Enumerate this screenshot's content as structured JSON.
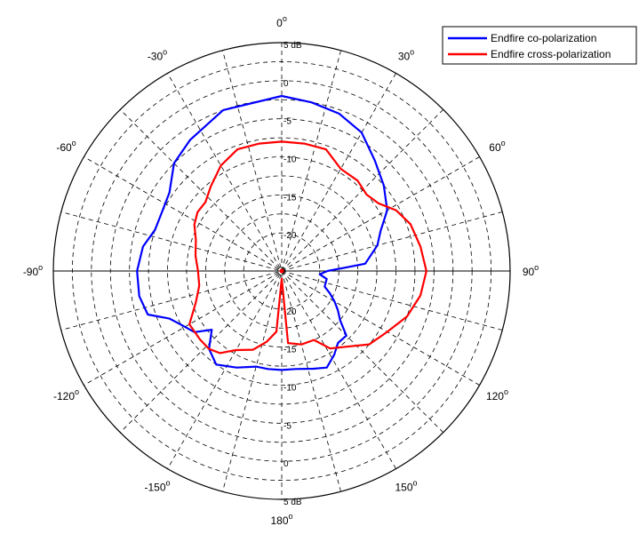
{
  "chart_data": {
    "type": "polar",
    "title": "",
    "angle_labels": [
      {
        "deg": 0,
        "text": "0"
      },
      {
        "deg": 30,
        "text": "30"
      },
      {
        "deg": 60,
        "text": "60"
      },
      {
        "deg": 90,
        "text": "90"
      },
      {
        "deg": 120,
        "text": "120"
      },
      {
        "deg": 150,
        "text": "150"
      },
      {
        "deg": 180,
        "text": "180"
      },
      {
        "deg": -150,
        "text": "-150"
      },
      {
        "deg": -120,
        "text": "-120"
      },
      {
        "deg": -90,
        "text": "-90"
      },
      {
        "deg": -60,
        "text": "-60"
      },
      {
        "deg": -30,
        "text": "-30"
      }
    ],
    "degree_symbol": "o",
    "ring_levels": [
      5,
      0,
      -5,
      -10,
      -15,
      -20
    ],
    "ring_labels": [
      "5 dB",
      "0",
      "-5",
      "-10",
      "-15",
      "-20"
    ],
    "r_range": [
      -25,
      5
    ],
    "legend": {
      "position": "top-right"
    },
    "series": [
      {
        "name": "Endfire co-polarization",
        "color": "#0000ff",
        "points": [
          [
            0,
            -2
          ],
          [
            -20,
            -2.5
          ],
          [
            -35,
            -4
          ],
          [
            -45,
            -5
          ],
          [
            -55,
            -7
          ],
          [
            -65,
            -7.5
          ],
          [
            -72,
            -7.5
          ],
          [
            -80,
            -6.5
          ],
          [
            -90,
            -6
          ],
          [
            -100,
            -6
          ],
          [
            -108,
            -6.5
          ],
          [
            -113,
            -9
          ],
          [
            -118,
            -10
          ],
          [
            -125,
            -11
          ],
          [
            -130,
            -13
          ],
          [
            -137,
            -11
          ],
          [
            -145,
            -10
          ],
          [
            -155,
            -11
          ],
          [
            -165,
            -12
          ],
          [
            -172,
            -12
          ],
          [
            180,
            -12
          ],
          [
            172,
            -12
          ],
          [
            162,
            -11.5
          ],
          [
            155,
            -11
          ],
          [
            148,
            -12
          ],
          [
            142,
            -13
          ],
          [
            135,
            -13
          ],
          [
            130,
            -15
          ],
          [
            125,
            -16
          ],
          [
            120,
            -17
          ],
          [
            115,
            -18
          ],
          [
            110,
            -19
          ],
          [
            100,
            -19
          ],
          [
            95,
            -20
          ],
          [
            90,
            -19
          ],
          [
            85,
            -14
          ],
          [
            75,
            -12
          ],
          [
            68,
            -11
          ],
          [
            60,
            -9
          ],
          [
            50,
            -7.5
          ],
          [
            40,
            -6
          ],
          [
            30,
            -4
          ],
          [
            20,
            -3
          ],
          [
            10,
            -2.5
          ],
          [
            0,
            -2
          ]
        ]
      },
      {
        "name": "Endfire cross-polarization",
        "color": "#ff0000",
        "points": [
          [
            0,
            -8
          ],
          [
            -10,
            -8
          ],
          [
            -20,
            -8
          ],
          [
            -30,
            -9
          ],
          [
            -40,
            -10.5
          ],
          [
            -48,
            -11.5
          ],
          [
            -55,
            -11.5
          ],
          [
            -62,
            -12
          ],
          [
            -70,
            -13
          ],
          [
            -80,
            -13.5
          ],
          [
            -90,
            -14
          ],
          [
            -100,
            -14
          ],
          [
            -110,
            -13
          ],
          [
            -120,
            -11
          ],
          [
            -130,
            -11
          ],
          [
            -137,
            -11
          ],
          [
            -143,
            -11.5
          ],
          [
            -150,
            -13
          ],
          [
            -160,
            -14
          ],
          [
            -168,
            -15.5
          ],
          [
            -175,
            -17
          ],
          [
            180,
            -24
          ],
          [
            175,
            -15.5
          ],
          [
            165,
            -15
          ],
          [
            155,
            -15
          ],
          [
            148,
            -13
          ],
          [
            140,
            -12
          ],
          [
            130,
            -10
          ],
          [
            120,
            -9
          ],
          [
            110,
            -7.5
          ],
          [
            100,
            -6.5
          ],
          [
            90,
            -6
          ],
          [
            80,
            -6.5
          ],
          [
            70,
            -7
          ],
          [
            62,
            -8
          ],
          [
            55,
            -9.5
          ],
          [
            48,
            -10
          ],
          [
            40,
            -9.5
          ],
          [
            30,
            -9.5
          ],
          [
            20,
            -8
          ],
          [
            10,
            -8
          ],
          [
            0,
            -8
          ]
        ]
      }
    ]
  }
}
